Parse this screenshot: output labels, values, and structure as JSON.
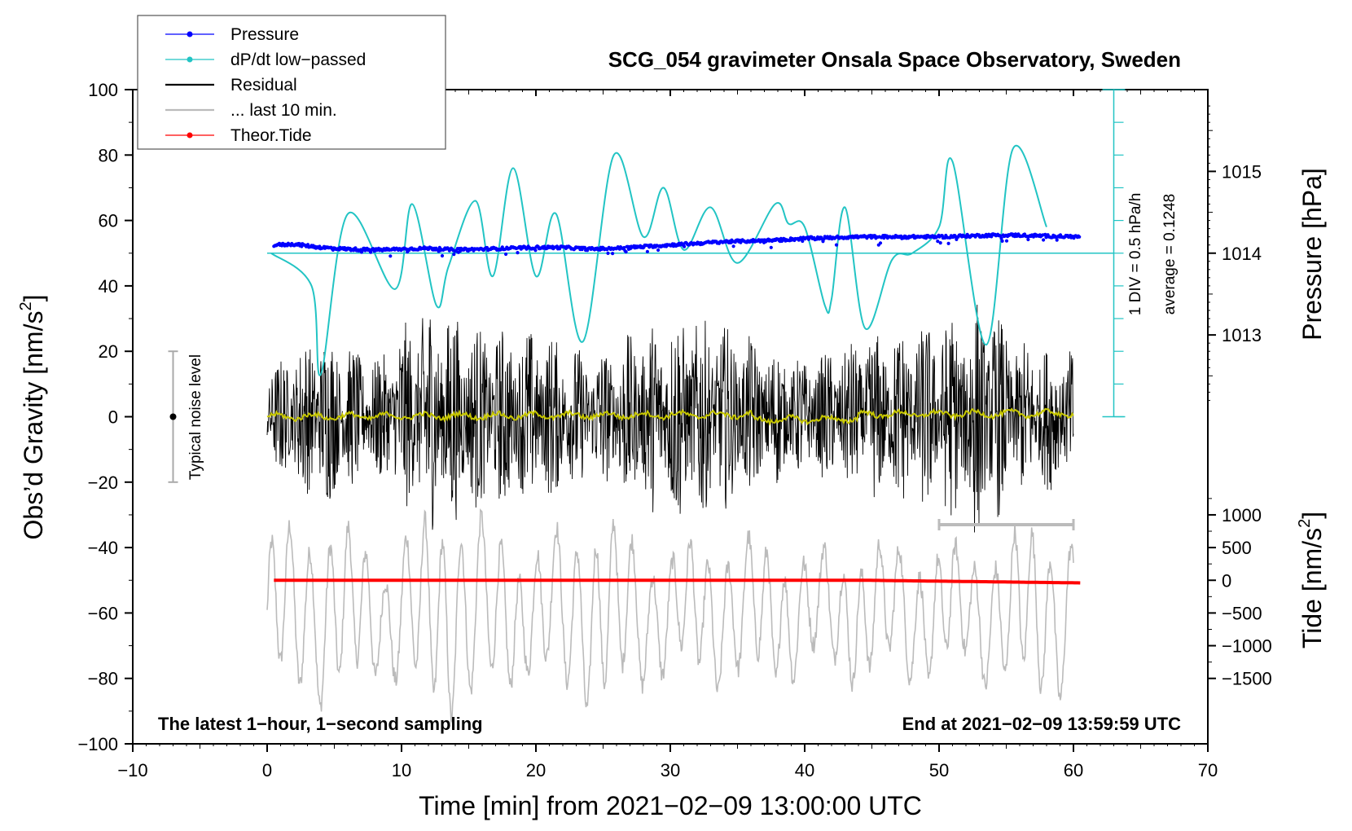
{
  "chart_data": {
    "type": "line",
    "title": "SCG_054 gravimeter Onsala Space Observatory, Sweden",
    "xlabel": "Time [min] from 2021−02−09 13:00:00 UTC",
    "ylabel_left": "Obs’d Gravity [nm/s",
    "ylabel_left_sup": "2",
    "ylabel_left_close": "]",
    "ylabel_pressure": "Pressure [hPa]",
    "ylabel_tide": "Tide [nm/s",
    "ylabel_tide_sup": "2",
    "ylabel_tide_close": "]",
    "xlim": [
      -10,
      70
    ],
    "ylim": [
      -100,
      100
    ],
    "x_ticks": [
      "−10",
      "0",
      "10",
      "20",
      "30",
      "40",
      "50",
      "60",
      "70"
    ],
    "x_tick_values": [
      -10,
      0,
      10,
      20,
      30,
      40,
      50,
      60,
      70
    ],
    "y_ticks": [
      "−100",
      "−80",
      "−60",
      "−40",
      "−20",
      "0",
      "20",
      "40",
      "60",
      "80",
      "100"
    ],
    "y_tick_values": [
      -100,
      -80,
      -60,
      -40,
      -20,
      0,
      20,
      40,
      60,
      80,
      100
    ],
    "pressure_ticks": [
      "1013",
      "1014",
      "1015"
    ],
    "pressure_tick_values": [
      1013,
      1014,
      1015
    ],
    "pressure_axis": {
      "value_at_gravity_50": 1014,
      "hpa_per_gravity_unit": 0.04
    },
    "tide_ticks": [
      "−1500",
      "−1000",
      "−500",
      "0",
      "500",
      "1000"
    ],
    "tide_tick_values": [
      -1500,
      -1000,
      -500,
      0,
      500,
      1000
    ],
    "tide_axis": {
      "value_at_gravity_minus50": 0,
      "nms2_per_gravity_unit": 0.02
    },
    "legend": [
      {
        "label": "Pressure",
        "color": "#0000ff",
        "marker": true
      },
      {
        "label": "dP/dt low−passed",
        "color": "#22c4c4",
        "marker": true
      },
      {
        "label": "Residual",
        "color": "#000000",
        "marker": false
      },
      {
        "label": "... last 10 min.",
        "color": "#bbbbbb",
        "marker": false
      },
      {
        "label": "Theor.Tide",
        "color": "#ff0000",
        "marker": true
      }
    ],
    "colors": {
      "pressure": "#0000ff",
      "dpdt": "#22c4c4",
      "residual": "#000000",
      "residual_smooth": "#c8c800",
      "last10": "#bbbbbb",
      "tide": "#ff0000",
      "noise_bar": "#aaaaaa"
    },
    "series": [
      {
        "name": "Pressure",
        "units": "hPa",
        "x": [
          0.5,
          2,
          4,
          6,
          8,
          10,
          12,
          14,
          16,
          18,
          20,
          22,
          24,
          26,
          28,
          30,
          32,
          34,
          36,
          38,
          40,
          42,
          44,
          46,
          48,
          50,
          52,
          54,
          56,
          58,
          60.5
        ],
        "values": [
          1014.1,
          1014.11,
          1014.07,
          1014.05,
          1014.04,
          1014.05,
          1014.06,
          1014.04,
          1014.05,
          1014.06,
          1014.07,
          1014.07,
          1014.05,
          1014.06,
          1014.08,
          1014.1,
          1014.12,
          1014.14,
          1014.15,
          1014.16,
          1014.18,
          1014.19,
          1014.2,
          1014.2,
          1014.2,
          1014.2,
          1014.21,
          1014.22,
          1014.22,
          1014.21,
          1014.2
        ]
      },
      {
        "name": "dP/dt low-passed",
        "units": "gravity-axis units (1 DIV = 0.5 hPa/h, baseline 50)",
        "x": [
          0.3,
          3.3,
          4.0,
          6.0,
          9.5,
          10.8,
          12.6,
          13.5,
          15.5,
          16.8,
          18.3,
          20.0,
          21.5,
          23.5,
          25.8,
          28.0,
          29.5,
          31.0,
          33.0,
          35.0,
          37.8,
          38.8,
          40.0,
          41.5,
          42.0,
          43.0,
          44.5,
          46.5,
          48.0,
          50.0,
          51.0,
          53.5,
          55.5,
          58.0
        ],
        "values": [
          50,
          40,
          13,
          62,
          39,
          65,
          34,
          46,
          66,
          43,
          76,
          43,
          62,
          23,
          80,
          55,
          70,
          51,
          64,
          47,
          65,
          59,
          58,
          34,
          36,
          64,
          27,
          48,
          50,
          58,
          78,
          22,
          82,
          58
        ]
      },
      {
        "name": "Residual",
        "units": "nm/s^2",
        "x": [
          0,
          60
        ],
        "envelope": [
          [
            0,
            15
          ],
          [
            4,
            28
          ],
          [
            8,
            18
          ],
          [
            12,
            38
          ],
          [
            16,
            28
          ],
          [
            20,
            28
          ],
          [
            24,
            20
          ],
          [
            28,
            28
          ],
          [
            31,
            34
          ],
          [
            36,
            25
          ],
          [
            40,
            18
          ],
          [
            45,
            26
          ],
          [
            50,
            30
          ],
          [
            53,
            38
          ],
          [
            56,
            24
          ],
          [
            60,
            22
          ]
        ]
      },
      {
        "name": "Residual smoothed",
        "units": "nm/s^2",
        "x": [
          0,
          60
        ],
        "values": [
          0,
          1
        ]
      },
      {
        "name": "... last 10 min.",
        "units": "gravity-axis units (shifted, compressed)",
        "x_range": [
          0,
          60
        ],
        "value_range": [
          -96,
          -28
        ],
        "baseline": -60
      },
      {
        "name": "Theor.Tide",
        "units": "nm/s^2",
        "x": [
          0.5,
          45,
          60.5
        ],
        "values": [
          0,
          -1,
          -40
        ]
      }
    ],
    "noise_level": {
      "label": "Typical noise level",
      "x": -7,
      "center": 0,
      "range": [
        -20,
        20
      ]
    },
    "ten_min_bar": {
      "x_range": [
        50,
        60
      ],
      "y": -33
    },
    "pressure_ref_line": 50,
    "annotations": {
      "div": "1 DIV = 0.5 hPa/h",
      "average": "average = 0.1248",
      "footer_left": "The latest 1−hour, 1−second sampling",
      "footer_right": "End at 2021−02−09 13:59:59 UTC"
    }
  }
}
